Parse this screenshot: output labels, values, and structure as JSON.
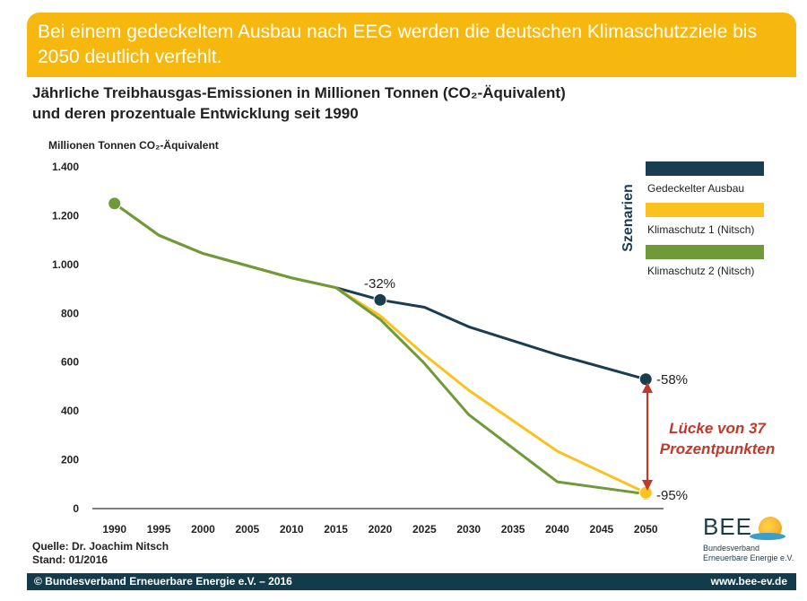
{
  "banner": {
    "text": "Bei einem gedeckeltem Ausbau nach EEG werden die deutschen Klimaschutzziele bis 2050 deutlich verfehlt."
  },
  "title": {
    "line1": "Jährliche Treibhausgas-Emissionen in Millionen Tonnen (CO₂-Äquivalent)",
    "line2": "und deren prozentuale Entwicklung seit 1990"
  },
  "source": {
    "line1": "Quelle: Dr. Joachim Nitsch",
    "line2": "Stand: 01/2016"
  },
  "footer": {
    "left": "© Bundesverband Erneuerbare Energie e.V. – 2016",
    "right": "www.bee-ev.de"
  },
  "logo": {
    "name": "BEE",
    "line1": "Bundesverband",
    "line2": "Erneuerbare Energie e.V."
  },
  "colors": {
    "banner": "#f6b80f",
    "footer": "#123c4c",
    "gap_arrow": "#c0392b"
  },
  "chart_data": {
    "type": "line",
    "ylabel": "Millionen Tonnen CO₂-Äquivalent",
    "ylim": [
      0,
      1400
    ],
    "yticks": [
      0,
      200,
      400,
      600,
      800,
      1000,
      1200,
      1400
    ],
    "ytick_labels": [
      "0",
      "200",
      "400",
      "600",
      "800",
      "1.000",
      "1.200",
      "1.400"
    ],
    "xticks": [
      1990,
      1995,
      2000,
      2005,
      2010,
      2015,
      2020,
      2025,
      2030,
      2035,
      2040,
      2045,
      2050
    ],
    "xtick_labels": [
      "1990",
      "1995",
      "2000",
      "2005",
      "2010",
      "2015",
      "2020",
      "2025",
      "2030",
      "2035",
      "2040",
      "2045",
      "2050"
    ],
    "legend_title": "Szenarien",
    "legend_position": "top-right",
    "series": [
      {
        "name": "Gedeckelter Ausbau",
        "color": "#1b3d50",
        "x": [
          1990,
          1995,
          2000,
          2005,
          2010,
          2015,
          2020,
          2025,
          2030,
          2040,
          2050
        ],
        "y": [
          1250,
          1120,
          1045,
          995,
          945,
          905,
          855,
          825,
          745,
          630,
          530
        ]
      },
      {
        "name": "Klimaschutz 1 (Nitsch)",
        "color": "#f9c21f",
        "x": [
          1990,
          1995,
          2000,
          2005,
          2010,
          2015,
          2020,
          2025,
          2030,
          2040,
          2050
        ],
        "y": [
          1250,
          1120,
          1045,
          995,
          945,
          905,
          790,
          630,
          485,
          235,
          65
        ]
      },
      {
        "name": "Klimaschutz 2 (Nitsch)",
        "color": "#6e9a3a",
        "x": [
          1990,
          1995,
          2000,
          2005,
          2010,
          2015,
          2020,
          2025,
          2030,
          2040,
          2050
        ],
        "y": [
          1250,
          1120,
          1045,
          995,
          945,
          905,
          775,
          595,
          385,
          110,
          60
        ]
      }
    ],
    "markers": [
      {
        "series": 2,
        "x": 1990,
        "y": 1250,
        "color": "#6e9a3a"
      },
      {
        "series": 0,
        "x": 2020,
        "y": 855,
        "color": "#1b3d50"
      },
      {
        "series": 0,
        "x": 2050,
        "y": 530,
        "color": "#1b3d50"
      },
      {
        "series": 2,
        "x": 2050,
        "y": 60,
        "color": "#6e9a3a"
      },
      {
        "series": 1,
        "x": 2050,
        "y": 65,
        "color": "#f9c21f"
      }
    ],
    "annotations": {
      "pct_2020": "-32%",
      "pct_2050_capped": "-58%",
      "pct_2050_climate": "-95%",
      "gap_line1": "Lücke von 37",
      "gap_line2": "Prozentpunkten"
    }
  }
}
